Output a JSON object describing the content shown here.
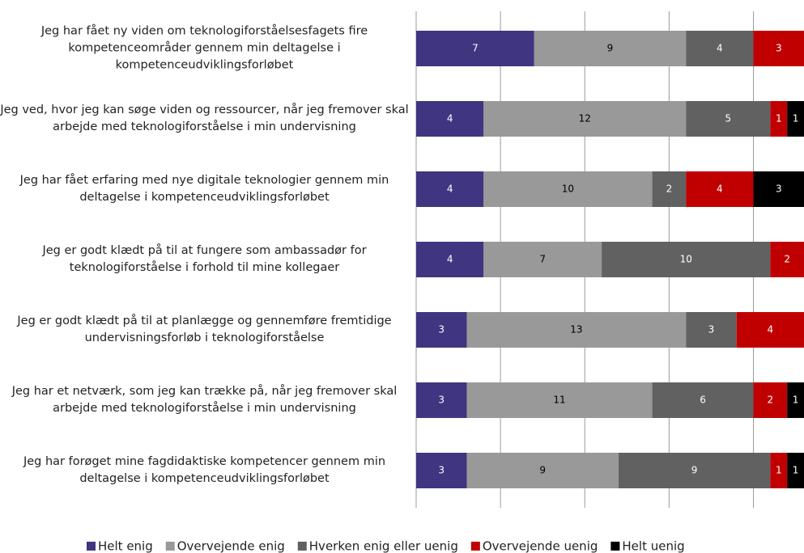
{
  "chart_data": {
    "type": "stacked_bar_horizontal",
    "categories": [
      "Jeg har fået ny viden om teknologiforståelsesfagets fire kompetenceområder gennem min deltagelse i kompetenceudviklingsforløbet",
      "Jeg ved, hvor jeg kan søge viden og ressourcer, når jeg fremover skal arbejde med teknologiforståelse i min undervisning",
      "Jeg har fået erfaring med nye digitale teknologier gennem min deltagelse i kompetenceudviklingsforløbet",
      "Jeg er godt klædt på til at fungere som ambassadør for teknologiforståelse i forhold til mine kollegaer",
      "Jeg er godt klædt på til at planlægge og gennemføre fremtidige undervisningsforløb i teknologiforståelse",
      "Jeg har et netværk, som jeg kan trække på, når jeg fremover skal arbejde med teknologiforståelse i min undervisning",
      "Jeg har forøget mine fagdidaktiske kompetencer gennem min deltagelse i kompetenceudviklingsforløbet"
    ],
    "series": [
      {
        "name": "Helt enig",
        "color": "#3f3580",
        "label_color": "#ffffff",
        "values": [
          7,
          4,
          4,
          4,
          3,
          3,
          3
        ]
      },
      {
        "name": "Overvejende enig",
        "color": "#999999",
        "label_color": "#000000",
        "values": [
          9,
          12,
          10,
          7,
          13,
          11,
          9
        ]
      },
      {
        "name": "Hverken enig eller uenig",
        "color": "#616161",
        "label_color": "#ffffff",
        "values": [
          4,
          5,
          2,
          10,
          3,
          6,
          9
        ]
      },
      {
        "name": "Overvejende uenig",
        "color": "#c00000",
        "label_color": "#ffffff",
        "values": [
          3,
          1,
          4,
          2,
          4,
          2,
          1
        ]
      },
      {
        "name": "Helt uenig",
        "color": "#000000",
        "label_color": "#ffffff",
        "values": [
          null,
          1,
          3,
          null,
          null,
          1,
          1
        ]
      }
    ],
    "xlim": [
      0,
      23
    ],
    "xticks": [
      0,
      5,
      10,
      15,
      20
    ],
    "grid": true,
    "legend": "bottom"
  }
}
